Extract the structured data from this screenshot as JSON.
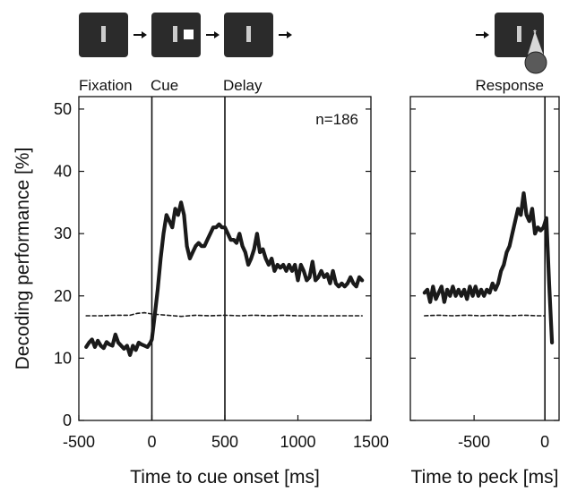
{
  "chart_data": [
    {
      "type": "line",
      "panel": "cue-aligned",
      "xlabel": "Time to cue onset [ms]",
      "ylabel": "Decoding performance [%]",
      "xlim": [
        -500,
        1500
      ],
      "ylim": [
        0,
        52
      ],
      "xticks": [
        -500,
        0,
        500,
        1000,
        1500
      ],
      "yticks": [
        0,
        10,
        20,
        30,
        40,
        50
      ],
      "annotation": "n=186",
      "vertical_lines": [
        0,
        500
      ],
      "epoch_labels": [
        "Fixation",
        "Cue",
        "Delay"
      ],
      "chance_level": 16.8,
      "series": [
        {
          "style": "solid",
          "x": [
            -450,
            -430,
            -410,
            -390,
            -370,
            -350,
            -330,
            -310,
            -290,
            -270,
            -250,
            -230,
            -210,
            -190,
            -170,
            -150,
            -130,
            -110,
            -90,
            -70,
            -50,
            -30,
            -10,
            0,
            20,
            40,
            60,
            80,
            100,
            120,
            140,
            160,
            180,
            200,
            220,
            240,
            260,
            280,
            300,
            320,
            340,
            360,
            380,
            400,
            420,
            440,
            460,
            480,
            500,
            520,
            540,
            560,
            580,
            600,
            620,
            640,
            660,
            680,
            700,
            720,
            740,
            760,
            780,
            800,
            820,
            840,
            860,
            880,
            900,
            920,
            940,
            960,
            980,
            1000,
            1020,
            1040,
            1060,
            1080,
            1100,
            1120,
            1140,
            1160,
            1180,
            1200,
            1220,
            1240,
            1260,
            1280,
            1300,
            1320,
            1340,
            1360,
            1380,
            1400,
            1420,
            1440
          ],
          "y": [
            11.8,
            12.5,
            13.0,
            11.8,
            12.8,
            12.0,
            11.6,
            12.6,
            12.2,
            12.0,
            13.8,
            12.5,
            12.0,
            11.5,
            12.0,
            10.5,
            12.0,
            11.3,
            12.5,
            12.2,
            12.0,
            11.8,
            12.5,
            13,
            17,
            21,
            26,
            30,
            33,
            32,
            31,
            34,
            33,
            35,
            33,
            28,
            26,
            27,
            28,
            28.5,
            28,
            28,
            29,
            30,
            31,
            31,
            31.5,
            31,
            31,
            30,
            29,
            29,
            28.5,
            30,
            28,
            27,
            25,
            26,
            27.5,
            30,
            27,
            27.5,
            26,
            25,
            26,
            24,
            25,
            24.5,
            25,
            24,
            25,
            24,
            25,
            22.5,
            25,
            24,
            22.5,
            23,
            25.5,
            22.5,
            23,
            24,
            23,
            23.5,
            22,
            24,
            22,
            21.5,
            22,
            21.5,
            22,
            23,
            22,
            21.5,
            23,
            22.5
          ]
        },
        {
          "style": "dashed",
          "label": "chance",
          "x": [
            -450,
            -350,
            -250,
            -150,
            -100,
            -50,
            0,
            50,
            100,
            150,
            200,
            300,
            400,
            500,
            600,
            700,
            800,
            900,
            1000,
            1100,
            1200,
            1300,
            1440
          ],
          "y": [
            16.8,
            16.8,
            16.9,
            16.9,
            17.2,
            17.3,
            17.1,
            17.0,
            16.9,
            16.8,
            16.7,
            16.9,
            16.8,
            16.9,
            16.8,
            16.9,
            16.8,
            16.9,
            16.8,
            16.8,
            16.8,
            16.8,
            16.8
          ]
        }
      ]
    },
    {
      "type": "line",
      "panel": "peck-aligned",
      "xlabel": "Time to peck [ms]",
      "xlim": [
        -950,
        100
      ],
      "ylim": [
        0,
        52
      ],
      "xticks": [
        -500,
        0
      ],
      "vertical_lines": [
        0
      ],
      "epoch_labels": [
        "Response"
      ],
      "series": [
        {
          "style": "solid",
          "x": [
            -850,
            -830,
            -810,
            -790,
            -770,
            -750,
            -730,
            -710,
            -690,
            -670,
            -650,
            -630,
            -610,
            -590,
            -570,
            -550,
            -530,
            -510,
            -490,
            -470,
            -450,
            -430,
            -410,
            -390,
            -370,
            -350,
            -330,
            -310,
            -290,
            -270,
            -250,
            -230,
            -210,
            -190,
            -170,
            -150,
            -130,
            -110,
            -90,
            -70,
            -50,
            -30,
            -10,
            10,
            30,
            50
          ],
          "y": [
            20.5,
            21,
            19,
            21.5,
            19.5,
            20.5,
            21.5,
            19,
            21,
            20,
            21.5,
            20,
            21,
            20,
            21,
            19.5,
            21.5,
            20,
            21.5,
            20,
            21,
            20,
            21,
            20.5,
            22,
            21,
            22,
            24,
            25,
            27,
            28,
            30,
            32,
            34,
            33,
            36.5,
            33,
            32,
            34,
            30,
            31,
            30.5,
            31,
            32.5,
            22,
            12.5
          ]
        },
        {
          "style": "dashed",
          "label": "chance",
          "x": [
            -850,
            -750,
            -650,
            -550,
            -450,
            -350,
            -250,
            -150,
            -50,
            0
          ],
          "y": [
            16.8,
            16.9,
            16.8,
            16.9,
            16.8,
            16.9,
            16.8,
            16.9,
            16.8,
            16.8
          ]
        }
      ]
    }
  ],
  "icons": [
    {
      "name": "fixation-screen-icon",
      "stimulus": "bar"
    },
    {
      "name": "cue-screen-icon",
      "stimulus": "bar-and-square"
    },
    {
      "name": "delay-screen-icon",
      "stimulus": "bar"
    },
    {
      "name": "response-screen-icon",
      "stimulus": "bar-and-peck"
    }
  ],
  "colors": {
    "line": "#1a1a1a",
    "screen": "#2b2b2b",
    "stimulus": "#cccccc",
    "peck": "#5a5a5a"
  }
}
